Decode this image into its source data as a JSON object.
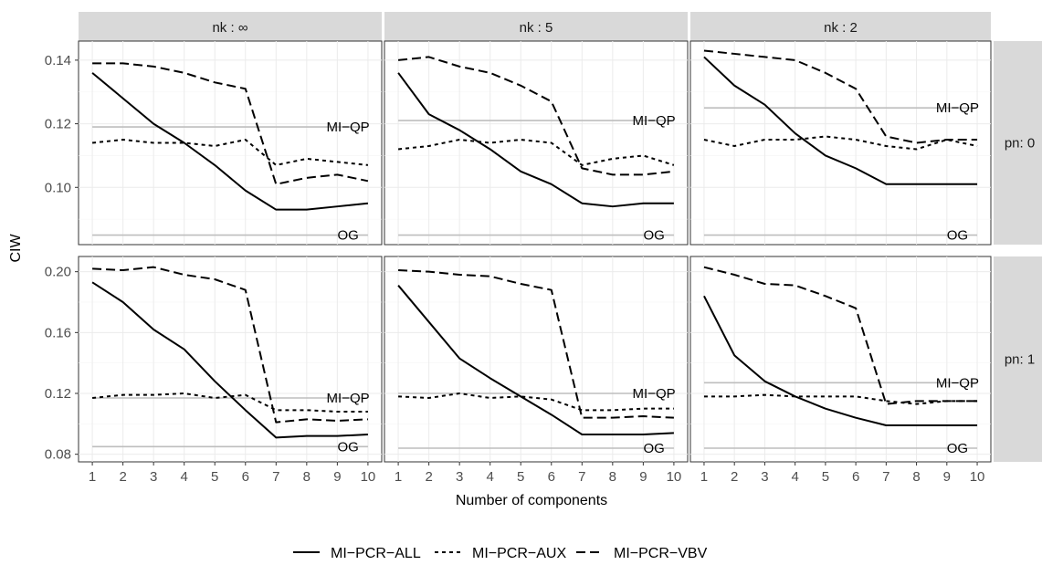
{
  "chart_data": {
    "type": "line",
    "ylabel": "CIW",
    "xlabel": "Number of components",
    "x": [
      1,
      2,
      3,
      4,
      5,
      6,
      7,
      8,
      9,
      10
    ],
    "columns": [
      "nk : ∞",
      "nk : 5",
      "nk : 2"
    ],
    "rows": [
      "pn: 0",
      "pn: 1"
    ],
    "row_ylim": [
      [
        0.082,
        0.146
      ],
      [
        0.075,
        0.21
      ]
    ],
    "row_yticks": [
      {
        "values": [
          0.1,
          0.12,
          0.14
        ],
        "labels": [
          "0.10",
          "0.12",
          "0.14"
        ]
      },
      {
        "values": [
          0.08,
          0.12,
          0.16,
          0.2
        ],
        "labels": [
          "0.08",
          "0.12",
          "0.16",
          "0.20"
        ]
      }
    ],
    "xticks": [
      "1",
      "2",
      "3",
      "4",
      "5",
      "6",
      "7",
      "8",
      "9",
      "10"
    ],
    "legend": {
      "position": "bottom",
      "entries": [
        {
          "name": "MI−PCR−ALL",
          "dash": "solid"
        },
        {
          "name": "MI−PCR−AUX",
          "dash": "dotted"
        },
        {
          "name": "MI−PCR−VBV",
          "dash": "dashed"
        }
      ]
    },
    "reference_lines": [
      {
        "label": "MI−QP",
        "color": "#bebebe"
      },
      {
        "label": "OG",
        "color": "#bebebe"
      }
    ],
    "panels": [
      {
        "column": 0,
        "row": 0,
        "mi_qp": 0.119,
        "og": 0.085,
        "series": {
          "MI−PCR−ALL": [
            0.136,
            0.128,
            0.12,
            0.114,
            0.107,
            0.099,
            0.093,
            0.093,
            0.094,
            0.095
          ],
          "MI−PCR−AUX": [
            0.114,
            0.115,
            0.114,
            0.114,
            0.113,
            0.115,
            0.107,
            0.109,
            0.108,
            0.107
          ],
          "MI−PCR−VBV": [
            0.139,
            0.139,
            0.138,
            0.136,
            0.133,
            0.131,
            0.101,
            0.103,
            0.104,
            0.102
          ]
        }
      },
      {
        "column": 1,
        "row": 0,
        "mi_qp": 0.121,
        "og": 0.085,
        "series": {
          "MI−PCR−ALL": [
            0.136,
            0.123,
            0.118,
            0.112,
            0.105,
            0.101,
            0.095,
            0.094,
            0.095,
            0.095
          ],
          "MI−PCR−AUX": [
            0.112,
            0.113,
            0.115,
            0.114,
            0.115,
            0.114,
            0.107,
            0.109,
            0.11,
            0.107
          ],
          "MI−PCR−VBV": [
            0.14,
            0.141,
            0.138,
            0.136,
            0.132,
            0.127,
            0.106,
            0.104,
            0.104,
            0.105
          ]
        }
      },
      {
        "column": 2,
        "row": 0,
        "mi_qp": 0.125,
        "og": 0.085,
        "series": {
          "MI−PCR−ALL": [
            0.141,
            0.132,
            0.126,
            0.117,
            0.11,
            0.106,
            0.101,
            0.101,
            0.101,
            0.101
          ],
          "MI−PCR−AUX": [
            0.115,
            0.113,
            0.115,
            0.115,
            0.116,
            0.115,
            0.113,
            0.112,
            0.115,
            0.113
          ],
          "MI−PCR−VBV": [
            0.143,
            0.142,
            0.141,
            0.14,
            0.136,
            0.131,
            0.116,
            0.114,
            0.115,
            0.115
          ]
        }
      },
      {
        "column": 0,
        "row": 1,
        "mi_qp": 0.117,
        "og": 0.085,
        "series": {
          "MI−PCR−ALL": [
            0.193,
            0.18,
            0.162,
            0.149,
            0.128,
            0.109,
            0.091,
            0.092,
            0.092,
            0.093
          ],
          "MI−PCR−AUX": [
            0.117,
            0.119,
            0.119,
            0.12,
            0.117,
            0.119,
            0.109,
            0.109,
            0.108,
            0.108
          ],
          "MI−PCR−VBV": [
            0.202,
            0.201,
            0.203,
            0.198,
            0.195,
            0.188,
            0.101,
            0.103,
            0.102,
            0.103
          ]
        }
      },
      {
        "column": 1,
        "row": 1,
        "mi_qp": 0.12,
        "og": 0.084,
        "series": {
          "MI−PCR−ALL": [
            0.191,
            0.167,
            0.143,
            0.13,
            0.118,
            0.106,
            0.093,
            0.093,
            0.093,
            0.094
          ],
          "MI−PCR−AUX": [
            0.118,
            0.117,
            0.12,
            0.117,
            0.118,
            0.116,
            0.109,
            0.109,
            0.11,
            0.11
          ],
          "MI−PCR−VBV": [
            0.201,
            0.2,
            0.198,
            0.197,
            0.192,
            0.188,
            0.104,
            0.104,
            0.105,
            0.104
          ]
        }
      },
      {
        "column": 2,
        "row": 1,
        "mi_qp": 0.127,
        "og": 0.084,
        "series": {
          "MI−PCR−ALL": [
            0.184,
            0.145,
            0.128,
            0.118,
            0.11,
            0.104,
            0.099,
            0.099,
            0.099,
            0.099
          ],
          "MI−PCR−AUX": [
            0.118,
            0.118,
            0.119,
            0.118,
            0.118,
            0.118,
            0.115,
            0.113,
            0.115,
            0.115
          ],
          "MI−PCR−VBV": [
            0.203,
            0.198,
            0.192,
            0.191,
            0.184,
            0.176,
            0.113,
            0.115,
            0.115,
            0.115
          ]
        }
      }
    ]
  }
}
